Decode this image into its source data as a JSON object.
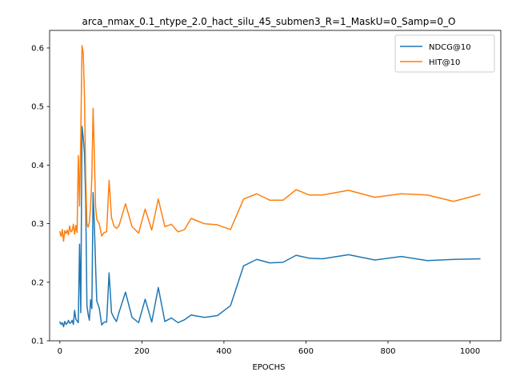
{
  "chart_data": {
    "type": "line",
    "title": "arca_nmax_0.1_ntype_2.0_hact_silu_45_submen3_R=1_MaskU=0_Samp=0_O",
    "xlabel": "EPOCHS",
    "ylabel": "",
    "xlim": [
      -25,
      1075
    ],
    "ylim": [
      0.1,
      0.63
    ],
    "xticks": [
      0,
      200,
      400,
      600,
      800,
      1000
    ],
    "yticks": [
      0.1,
      0.2,
      0.3,
      0.4,
      0.5,
      0.6
    ],
    "grid": false,
    "legend_position": "upper right",
    "series": [
      {
        "name": "NDCG@10",
        "color": "#1f77b4",
        "x": [
          0,
          3,
          6,
          9,
          12,
          15,
          18,
          21,
          24,
          27,
          30,
          33,
          36,
          39,
          42,
          45,
          48,
          51,
          54,
          57,
          60,
          63,
          66,
          69,
          72,
          75,
          78,
          81,
          84,
          87,
          90,
          96,
          102,
          108,
          114,
          120,
          126,
          132,
          138,
          144,
          160,
          176,
          192,
          208,
          224,
          240,
          256,
          272,
          288,
          304,
          320,
          352,
          384,
          416,
          448,
          480,
          512,
          544,
          576,
          608,
          640,
          704,
          768,
          832,
          896,
          960,
          1024
        ],
        "values": [
          0.132,
          0.128,
          0.131,
          0.124,
          0.133,
          0.128,
          0.13,
          0.135,
          0.13,
          0.131,
          0.135,
          0.128,
          0.152,
          0.137,
          0.134,
          0.131,
          0.265,
          0.148,
          0.466,
          0.447,
          0.42,
          0.34,
          0.16,
          0.145,
          0.135,
          0.17,
          0.155,
          0.353,
          0.3,
          0.23,
          0.168,
          0.156,
          0.127,
          0.132,
          0.132,
          0.216,
          0.148,
          0.139,
          0.133,
          0.148,
          0.183,
          0.14,
          0.131,
          0.171,
          0.132,
          0.191,
          0.133,
          0.139,
          0.131,
          0.136,
          0.144,
          0.14,
          0.143,
          0.16,
          0.228,
          0.239,
          0.233,
          0.234,
          0.246,
          0.241,
          0.24,
          0.247,
          0.238,
          0.244,
          0.237,
          0.239,
          0.24
        ]
      },
      {
        "name": "HIT@10",
        "color": "#ff7f0e",
        "x": [
          0,
          3,
          6,
          9,
          12,
          15,
          18,
          21,
          24,
          27,
          30,
          33,
          36,
          39,
          42,
          45,
          48,
          51,
          54,
          57,
          60,
          63,
          66,
          69,
          72,
          75,
          78,
          81,
          84,
          87,
          90,
          96,
          102,
          108,
          114,
          120,
          126,
          132,
          138,
          144,
          160,
          176,
          192,
          208,
          224,
          240,
          256,
          272,
          288,
          304,
          320,
          352,
          384,
          416,
          448,
          480,
          512,
          544,
          576,
          608,
          640,
          704,
          768,
          832,
          896,
          960,
          1024
        ],
        "values": [
          0.286,
          0.278,
          0.29,
          0.27,
          0.288,
          0.283,
          0.289,
          0.281,
          0.296,
          0.286,
          0.288,
          0.299,
          0.282,
          0.297,
          0.285,
          0.416,
          0.33,
          0.45,
          0.604,
          0.592,
          0.52,
          0.38,
          0.3,
          0.294,
          0.302,
          0.33,
          0.38,
          0.497,
          0.42,
          0.33,
          0.307,
          0.3,
          0.279,
          0.285,
          0.286,
          0.374,
          0.31,
          0.296,
          0.292,
          0.296,
          0.334,
          0.295,
          0.284,
          0.325,
          0.289,
          0.342,
          0.295,
          0.299,
          0.286,
          0.29,
          0.309,
          0.3,
          0.298,
          0.29,
          0.342,
          0.351,
          0.34,
          0.34,
          0.358,
          0.349,
          0.349,
          0.357,
          0.345,
          0.351,
          0.349,
          0.338,
          0.35
        ]
      }
    ]
  }
}
